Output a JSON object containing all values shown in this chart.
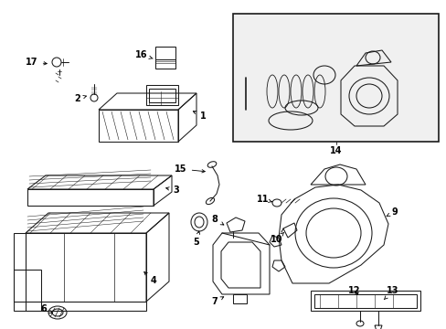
{
  "bg_color": "#ffffff",
  "fg_color": "#1a1a1a",
  "lw": 0.75
}
